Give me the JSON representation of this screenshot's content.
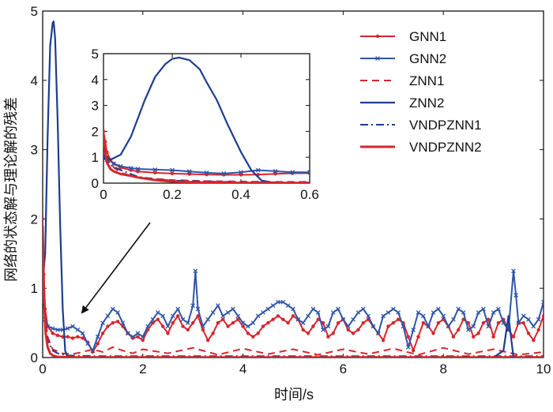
{
  "chart_data": {
    "type": "line",
    "xlabel": "时间/s",
    "ylabel": "网络的状态解与理论解的残差",
    "xlim": [
      0,
      10
    ],
    "ylim": [
      0,
      5
    ],
    "xticks": [
      "0",
      "2",
      "4",
      "6",
      "8",
      "10"
    ],
    "yticks": [
      "0",
      "1",
      "2",
      "3",
      "4",
      "5"
    ],
    "legend_position": "top-right",
    "series": [
      {
        "name": "GNN1",
        "color": "#d7262d",
        "style": "solid-dot-markers",
        "x": [
          0,
          0.02,
          0.05,
          0.1,
          0.2,
          0.3,
          0.4,
          0.5,
          0.6,
          0.7,
          0.8,
          0.9,
          1.0,
          1.1,
          1.2,
          1.3,
          1.4,
          1.5,
          1.6,
          1.7,
          1.8,
          1.9,
          2.0,
          2.1,
          2.2,
          2.3,
          2.4,
          2.5,
          2.6,
          2.7,
          2.8,
          2.9,
          3.0,
          3.1,
          3.2,
          3.3,
          3.4,
          3.5,
          3.6,
          3.7,
          3.8,
          3.9,
          4.0,
          4.1,
          4.2,
          4.3,
          4.4,
          4.5,
          4.6,
          4.7,
          4.8,
          4.9,
          5.0,
          5.1,
          5.2,
          5.3,
          5.4,
          5.5,
          5.6,
          5.7,
          5.8,
          5.9,
          6.0,
          6.1,
          6.2,
          6.3,
          6.4,
          6.5,
          6.6,
          6.7,
          6.8,
          6.9,
          7.0,
          7.1,
          7.2,
          7.3,
          7.4,
          7.5,
          7.6,
          7.7,
          7.8,
          7.9,
          8.0,
          8.1,
          8.2,
          8.3,
          8.4,
          8.5,
          8.6,
          8.7,
          8.8,
          8.9,
          9.0,
          9.1,
          9.2,
          9.3,
          9.4,
          9.5,
          9.6,
          9.7,
          9.8,
          9.9,
          10.0
        ],
        "y": [
          2.0,
          1.2,
          0.7,
          0.45,
          0.35,
          0.32,
          0.3,
          0.3,
          0.28,
          0.3,
          0.28,
          0.22,
          0.08,
          0.2,
          0.35,
          0.45,
          0.5,
          0.52,
          0.45,
          0.35,
          0.28,
          0.3,
          0.25,
          0.4,
          0.5,
          0.55,
          0.45,
          0.35,
          0.5,
          0.6,
          0.45,
          0.4,
          0.5,
          0.6,
          0.4,
          0.25,
          0.35,
          0.5,
          0.55,
          0.45,
          0.5,
          0.55,
          0.45,
          0.35,
          0.3,
          0.35,
          0.45,
          0.5,
          0.55,
          0.6,
          0.55,
          0.5,
          0.6,
          0.55,
          0.4,
          0.35,
          0.45,
          0.55,
          0.5,
          0.3,
          0.35,
          0.5,
          0.55,
          0.4,
          0.35,
          0.4,
          0.5,
          0.55,
          0.45,
          0.35,
          0.25,
          0.45,
          0.5,
          0.55,
          0.5,
          0.3,
          0.1,
          0.3,
          0.5,
          0.45,
          0.35,
          0.5,
          0.55,
          0.45,
          0.3,
          0.4,
          0.55,
          0.5,
          0.3,
          0.35,
          0.5,
          0.55,
          0.3,
          0.5,
          0.55,
          0.4,
          0.3,
          0.5,
          0.5,
          0.35,
          0.25,
          0.4,
          0.6
        ]
      },
      {
        "name": "GNN2",
        "color": "#2e55a8",
        "style": "solid-x-markers",
        "x": [
          0,
          0.02,
          0.05,
          0.1,
          0.2,
          0.3,
          0.4,
          0.5,
          0.6,
          0.7,
          0.8,
          0.9,
          1.0,
          1.1,
          1.2,
          1.3,
          1.4,
          1.5,
          1.6,
          1.7,
          1.8,
          1.9,
          2.0,
          2.1,
          2.2,
          2.3,
          2.4,
          2.5,
          2.6,
          2.7,
          2.8,
          2.9,
          3.0,
          3.05,
          3.1,
          3.2,
          3.3,
          3.4,
          3.5,
          3.6,
          3.7,
          3.8,
          3.9,
          4.0,
          4.1,
          4.2,
          4.3,
          4.4,
          4.5,
          4.6,
          4.7,
          4.8,
          4.9,
          5.0,
          5.1,
          5.2,
          5.3,
          5.4,
          5.5,
          5.6,
          5.7,
          5.8,
          5.9,
          6.0,
          6.1,
          6.2,
          6.3,
          6.4,
          6.5,
          6.6,
          6.7,
          6.8,
          6.9,
          7.0,
          7.1,
          7.2,
          7.3,
          7.4,
          7.5,
          7.6,
          7.7,
          7.8,
          7.9,
          8.0,
          8.1,
          8.2,
          8.3,
          8.4,
          8.5,
          8.6,
          8.7,
          8.8,
          8.9,
          9.0,
          9.1,
          9.2,
          9.3,
          9.4,
          9.45,
          9.5,
          9.6,
          9.7,
          9.8,
          9.9,
          10.0
        ],
        "y": [
          1.0,
          0.8,
          0.55,
          0.45,
          0.42,
          0.4,
          0.4,
          0.42,
          0.45,
          0.4,
          0.35,
          0.2,
          0.1,
          0.3,
          0.5,
          0.6,
          0.7,
          0.65,
          0.5,
          0.35,
          0.3,
          0.35,
          0.3,
          0.45,
          0.55,
          0.65,
          0.6,
          0.45,
          0.6,
          0.7,
          0.55,
          0.5,
          0.75,
          1.25,
          0.7,
          0.45,
          0.55,
          0.65,
          0.75,
          0.6,
          0.65,
          0.7,
          0.6,
          0.5,
          0.45,
          0.5,
          0.6,
          0.65,
          0.7,
          0.75,
          0.8,
          0.8,
          0.75,
          0.7,
          0.55,
          0.5,
          0.6,
          0.7,
          0.65,
          0.4,
          0.45,
          0.65,
          0.7,
          0.55,
          0.45,
          0.55,
          0.65,
          0.7,
          0.6,
          0.45,
          0.35,
          0.6,
          0.65,
          0.7,
          0.65,
          0.45,
          0.15,
          0.4,
          0.65,
          0.6,
          0.45,
          0.65,
          0.7,
          0.6,
          0.45,
          0.55,
          0.7,
          0.65,
          0.4,
          0.45,
          0.65,
          0.7,
          0.45,
          0.65,
          0.7,
          0.5,
          0.4,
          1.25,
          0.9,
          0.5,
          0.6,
          0.55,
          0.45,
          0.55,
          0.8
        ]
      },
      {
        "name": "ZNN1",
        "color": "#d7262d",
        "style": "dashed",
        "x": [
          0,
          0.05,
          0.1,
          0.2,
          0.4,
          0.6,
          0.8,
          1.0,
          1.2,
          1.4,
          1.6,
          1.8,
          2.0,
          2.5,
          3.0,
          3.5,
          4.0,
          4.5,
          5.0,
          5.5,
          6.0,
          6.5,
          7.0,
          7.5,
          8.0,
          8.5,
          9.0,
          9.5,
          10.0
        ],
        "y": [
          1.5,
          0.6,
          0.3,
          0.12,
          0.06,
          0.05,
          0.08,
          0.12,
          0.08,
          0.15,
          0.1,
          0.06,
          0.12,
          0.06,
          0.14,
          0.04,
          0.13,
          0.05,
          0.12,
          0.04,
          0.12,
          0.05,
          0.13,
          0.04,
          0.14,
          0.05,
          0.12,
          0.04,
          0.08
        ]
      },
      {
        "name": "ZNN2",
        "color": "#1c3e8f",
        "style": "solid",
        "x": [
          0,
          0.05,
          0.1,
          0.15,
          0.2,
          0.22,
          0.25,
          0.3,
          0.35,
          0.4,
          0.45,
          0.5,
          0.6,
          1.0,
          2.0,
          4.0,
          6.0,
          8.0,
          9.0,
          9.2,
          9.3,
          9.35,
          9.4,
          9.5,
          10.0
        ],
        "y": [
          1.1,
          1.5,
          3.2,
          4.5,
          4.83,
          4.85,
          4.6,
          3.4,
          1.9,
          0.7,
          0.1,
          0.0,
          0.0,
          0.0,
          0.0,
          0.0,
          0.0,
          0.0,
          0.0,
          0.1,
          0.6,
          0.3,
          0.0,
          0.0,
          0.0
        ]
      },
      {
        "name": "VNDPZNN1",
        "color": "#1c3e8f",
        "style": "dash-dot",
        "x": [
          0,
          0.05,
          0.1,
          0.2,
          0.3,
          0.5,
          1.0,
          2.0,
          3.0,
          4.0,
          5.0,
          6.0,
          7.0,
          8.0,
          9.0,
          10.0
        ],
        "y": [
          1.0,
          0.5,
          0.25,
          0.1,
          0.06,
          0.03,
          0.02,
          0.02,
          0.02,
          0.02,
          0.02,
          0.02,
          0.02,
          0.02,
          0.02,
          0.02
        ]
      },
      {
        "name": "VNDPZNN2",
        "color": "#d7262d",
        "style": "solid-thick",
        "x": [
          0,
          0.03,
          0.06,
          0.1,
          0.15,
          0.2,
          0.3,
          0.5,
          1.0,
          2.0,
          4.0,
          6.0,
          8.0,
          10.0
        ],
        "y": [
          1.9,
          0.8,
          0.35,
          0.15,
          0.06,
          0.03,
          0.01,
          0.005,
          0.003,
          0.002,
          0.002,
          0.002,
          0.002,
          0.002
        ]
      }
    ],
    "inset": {
      "xlim": [
        0,
        0.6
      ],
      "ylim": [
        0,
        5
      ],
      "xticks": [
        "0",
        "0.2",
        "0.4",
        "0.6"
      ],
      "yticks": [
        "0",
        "1",
        "2",
        "3",
        "4",
        "5"
      ],
      "series": [
        {
          "name": "GNN1",
          "x": [
            0,
            0.005,
            0.01,
            0.02,
            0.03,
            0.05,
            0.08,
            0.1,
            0.15,
            0.2,
            0.25,
            0.3,
            0.35,
            0.4,
            0.45,
            0.5,
            0.55,
            0.6
          ],
          "y": [
            2.0,
            1.6,
            1.2,
            0.9,
            0.75,
            0.6,
            0.5,
            0.45,
            0.4,
            0.37,
            0.35,
            0.33,
            0.32,
            0.32,
            0.33,
            0.36,
            0.38,
            0.38
          ]
        },
        {
          "name": "GNN2",
          "x": [
            0,
            0.005,
            0.01,
            0.02,
            0.03,
            0.05,
            0.08,
            0.1,
            0.15,
            0.2,
            0.25,
            0.3,
            0.35,
            0.4,
            0.45,
            0.5,
            0.55,
            0.6
          ],
          "y": [
            1.0,
            0.95,
            0.9,
            0.85,
            0.75,
            0.65,
            0.58,
            0.55,
            0.52,
            0.5,
            0.45,
            0.4,
            0.37,
            0.42,
            0.5,
            0.46,
            0.42,
            0.42
          ]
        },
        {
          "name": "ZNN1",
          "x": [
            0,
            0.01,
            0.03,
            0.05,
            0.1,
            0.2,
            0.3,
            0.4,
            0.5,
            0.6
          ],
          "y": [
            1.5,
            1.1,
            0.6,
            0.4,
            0.22,
            0.12,
            0.08,
            0.06,
            0.05,
            0.05
          ]
        },
        {
          "name": "ZNN2",
          "x": [
            0,
            0.02,
            0.05,
            0.08,
            0.1,
            0.12,
            0.15,
            0.18,
            0.2,
            0.22,
            0.25,
            0.28,
            0.3,
            0.33,
            0.36,
            0.4,
            0.43,
            0.46,
            0.5,
            0.55,
            0.6
          ],
          "y": [
            1.1,
            0.9,
            1.1,
            1.8,
            2.5,
            3.2,
            4.1,
            4.6,
            4.8,
            4.85,
            4.75,
            4.4,
            3.9,
            3.2,
            2.3,
            1.2,
            0.5,
            0.1,
            0.0,
            0.0,
            0.0
          ]
        },
        {
          "name": "VNDPZNN1",
          "x": [
            0,
            0.01,
            0.02,
            0.05,
            0.08,
            0.1,
            0.15,
            0.2,
            0.3,
            0.4,
            0.5,
            0.6
          ],
          "y": [
            1.0,
            0.85,
            0.7,
            0.5,
            0.35,
            0.25,
            0.15,
            0.1,
            0.06,
            0.04,
            0.03,
            0.02
          ]
        },
        {
          "name": "VNDPZNN2",
          "x": [
            0,
            0.005,
            0.01,
            0.02,
            0.03,
            0.05,
            0.08,
            0.1,
            0.15,
            0.2,
            0.3,
            0.4,
            0.5,
            0.6
          ],
          "y": [
            1.9,
            1.2,
            0.8,
            0.55,
            0.45,
            0.35,
            0.28,
            0.22,
            0.12,
            0.06,
            0.02,
            0.01,
            0.005,
            0.005
          ]
        }
      ]
    }
  }
}
